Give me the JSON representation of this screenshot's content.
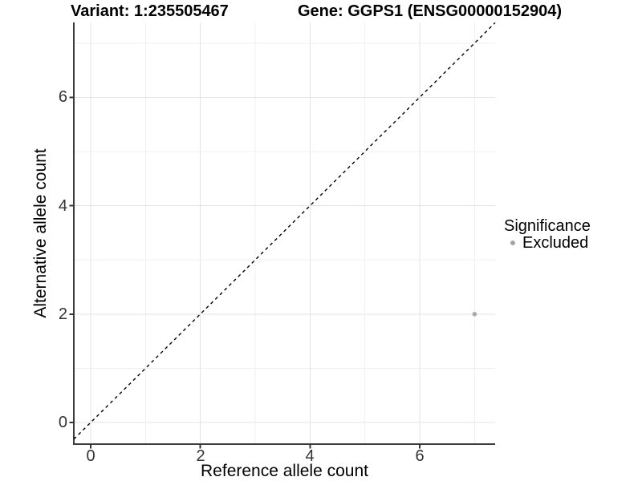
{
  "titles": {
    "variant": "Variant: 1:235505467",
    "gene": "Gene: GGPS1 (ENSG00000152904)"
  },
  "axes": {
    "x": {
      "title": "Reference allele count",
      "ticks": [
        "0",
        "2",
        "4",
        "6"
      ]
    },
    "y": {
      "title": "Alternative allele count",
      "ticks": [
        "0",
        "2",
        "4",
        "6"
      ]
    }
  },
  "legend": {
    "title": "Significance",
    "items": [
      {
        "label": "Excluded",
        "color": "#a5a5a5"
      }
    ]
  },
  "colors": {
    "point": "#aaaaaa",
    "grid_major": "#e3e3e3",
    "grid_minor": "#f0f0f0",
    "axis": "#3c3c3c",
    "tick_text": "#333333",
    "reference_line": "#000000",
    "background": "#ffffff"
  },
  "chart_data": {
    "type": "scatter",
    "title": "Variant: 1:235505467 — Gene: GGPS1 (ENSG00000152904)",
    "xlabel": "Reference allele count",
    "ylabel": "Alternative allele count",
    "xlim": [
      -0.35,
      7.35
    ],
    "ylim": [
      -0.35,
      7.35
    ],
    "x_ticks": [
      0,
      2,
      4,
      6
    ],
    "y_ticks": [
      0,
      2,
      4,
      6
    ],
    "grid": "major gridlines at 0,2,4,6 and minor gridlines at 1,3,5,7 on both axes",
    "legend_position": "right",
    "legend_title": "Significance",
    "series": [
      {
        "name": "Excluded",
        "color": "#aaaaaa",
        "points": [
          {
            "x": 7,
            "y": 2
          }
        ]
      }
    ],
    "reference_line": {
      "type": "identity y=x",
      "intercept": 0,
      "slope": 1,
      "style": "dashed",
      "color": "#000000"
    }
  }
}
